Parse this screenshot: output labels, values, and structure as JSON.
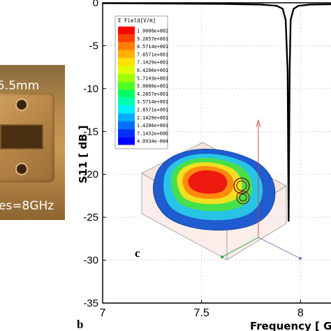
{
  "photo": {
    "label_top": "5.5mm",
    "label_bottom": "es=8GHz"
  },
  "chart_data": {
    "type": "line",
    "xlabel": "Frequency [ G",
    "ylabel": "S11 [ dB ]",
    "xlim": [
      7,
      8.2
    ],
    "ylim": [
      -35,
      0
    ],
    "x_ticks": [
      "7",
      "7.5",
      "8"
    ],
    "y_ticks": [
      "0",
      "-5",
      "-10",
      "-15",
      "-20",
      "-25",
      "-30",
      "-35"
    ],
    "grid": true,
    "series": [
      {
        "color": "#000000",
        "x": [
          7.0,
          7.3,
          7.6,
          7.8,
          7.88,
          7.91,
          7.925,
          7.935,
          7.94,
          7.945,
          7.95,
          7.965,
          7.99,
          8.05,
          8.2
        ],
        "y": [
          -0.05,
          -0.08,
          -0.12,
          -0.2,
          -0.35,
          -0.7,
          -2.0,
          -8.0,
          -25.5,
          -8.0,
          -2.0,
          -0.7,
          -0.35,
          -0.2,
          -0.15
        ]
      }
    ]
  },
  "inset": {
    "field_title": "E Field[V/m]",
    "legend_values": [
      "1.0000e+002",
      "9.2857e+001",
      "8.5714e+001",
      "7.8571e+001",
      "7.1429e+001",
      "6.4286e+001",
      "5.7143e+001",
      "5.0000e+001",
      "4.2857e+001",
      "3.5714e+001",
      "2.8571e+001",
      "2.1429e+001",
      "1.4286e+001",
      "7.1432e+000",
      "4.0934e-004"
    ],
    "legend_colors": [
      "#ff0000",
      "#ff4000",
      "#ff8000",
      "#ffb000",
      "#ffe000",
      "#e0ff00",
      "#a0ff00",
      "#50ff20",
      "#00ff60",
      "#00ffb0",
      "#00f0ff",
      "#00b0ff",
      "#0070ff",
      "#0030ff",
      "#0000ff"
    ]
  },
  "labels": {
    "panel_c": "c",
    "panel_b": "b"
  }
}
